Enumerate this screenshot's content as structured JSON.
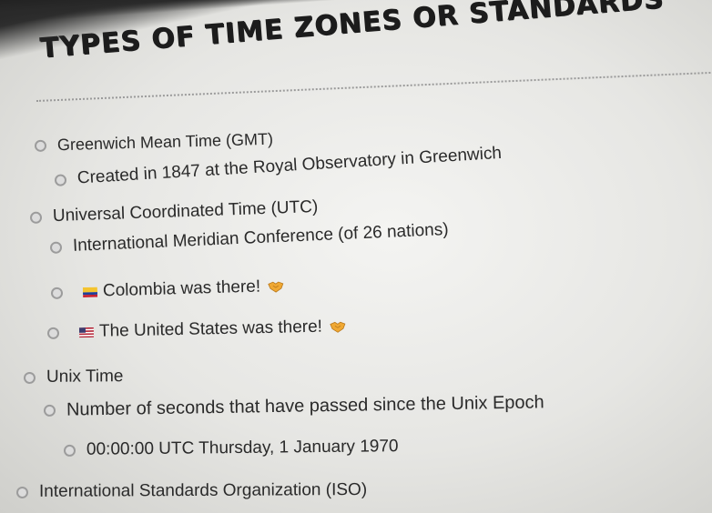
{
  "slide": {
    "title": "TYPES OF TIME ZONES OR STANDARDS",
    "items": [
      {
        "text": "Greenwich Mean Time (GMT)"
      },
      {
        "text": "Created in 1847 at the Royal Observatory in Greenwich"
      },
      {
        "text": "Universal Coordinated Time (UTC)"
      },
      {
        "text": "International Meridian Conference (of 26 nations)"
      },
      {
        "text": "Colombia was there!",
        "flag": "colombia-flag-icon",
        "emoji": "handshake-icon"
      },
      {
        "text": "The United States was there!",
        "flag": "usa-flag-icon",
        "emoji": "handshake-icon"
      },
      {
        "text": "Unix Time"
      },
      {
        "text": "Number of seconds that have passed since the Unix Epoch"
      },
      {
        "text": "00:00:00 UTC Thursday, 1 January 1970"
      },
      {
        "text": "International Standards Organization (ISO)"
      }
    ]
  },
  "colors": {
    "text": "#2a2a2a",
    "title": "#1c1c1c",
    "screen": "#ececea",
    "colombia_yellow": "#f4c430",
    "colombia_blue": "#1f3f9a",
    "colombia_red": "#c8202e",
    "handshake": "#f0a832"
  }
}
